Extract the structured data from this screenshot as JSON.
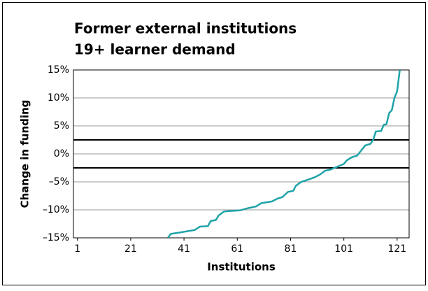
{
  "chart_data": {
    "type": "line",
    "title": "Former external institutions",
    "subtitle": "19+ learner demand",
    "x_label": "Institutions",
    "y_label": "Change in funding",
    "x": [
      35,
      36,
      40,
      45,
      47,
      50,
      51,
      53,
      54,
      56,
      58,
      62,
      65,
      68,
      70,
      74,
      76,
      78,
      80,
      82,
      83,
      85,
      87,
      90,
      92,
      94,
      96,
      98,
      100,
      101,
      102,
      104,
      106,
      107,
      109,
      111,
      112,
      113,
      115,
      116,
      117,
      118,
      119,
      120,
      121,
      122
    ],
    "series": [
      {
        "name": "Change in funding",
        "color": "#1fa3a8",
        "values": [
          -15,
          -14.3,
          -14,
          -13.6,
          -13.0,
          -12.9,
          -12.0,
          -11.8,
          -11.0,
          -10.3,
          -10.2,
          -10.1,
          -9.7,
          -9.4,
          -8.8,
          -8.5,
          -8.0,
          -7.7,
          -6.8,
          -6.6,
          -5.7,
          -5.0,
          -4.7,
          -4.2,
          -3.7,
          -3.0,
          -2.8,
          -2.4,
          -2.0,
          -1.8,
          -1.2,
          -0.6,
          -0.3,
          0.3,
          1.5,
          1.8,
          2.5,
          4.0,
          4.1,
          5.2,
          5.3,
          7.3,
          7.8,
          10.0,
          11.2,
          15
        ]
      }
    ],
    "reference_lines": [
      2.5,
      -2.5
    ],
    "xlim": [
      -0.5,
      125.5
    ],
    "xticks": [
      1,
      21,
      41,
      61,
      81,
      101,
      121
    ],
    "ylim": [
      -15,
      15
    ],
    "yticks": [
      {
        "value": -15,
        "label": "–15%"
      },
      {
        "value": -10,
        "label": "–10%"
      },
      {
        "value": -5,
        "label": "–5%"
      },
      {
        "value": 0,
        "label": "0%"
      },
      {
        "value": 5,
        "label": "5%"
      },
      {
        "value": 10,
        "label": "10%"
      },
      {
        "value": 15,
        "label": "15%"
      }
    ],
    "grid": true
  }
}
